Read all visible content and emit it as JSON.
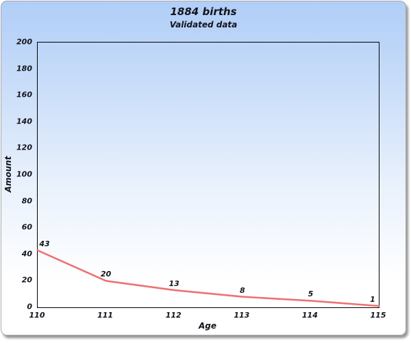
{
  "header": {
    "title": "1884 births",
    "subtitle": "Validated data"
  },
  "chart_data": {
    "type": "line",
    "title": "1884 births",
    "subtitle": "Validated data",
    "x": [
      110,
      111,
      112,
      113,
      114,
      115
    ],
    "values": [
      43,
      20,
      13,
      8,
      5,
      1
    ],
    "point_labels": [
      "43",
      "20",
      "13",
      "8",
      "5",
      "1"
    ],
    "xlabel": "Age",
    "ylabel": "Amount",
    "xlim": [
      110,
      115
    ],
    "ylim": [
      0,
      200
    ],
    "yticks": [
      0,
      20,
      40,
      60,
      80,
      100,
      120,
      140,
      160,
      180,
      200
    ],
    "xticks": [
      110,
      111,
      112,
      113,
      114,
      115
    ],
    "grid": false,
    "legend": false,
    "line_color": "#ef7173"
  },
  "colors": {
    "line": "#ef7173",
    "plot_border": "#000000",
    "background_top": "#b1cef7",
    "background_bottom": "#ffffff",
    "text": "#14141e"
  }
}
